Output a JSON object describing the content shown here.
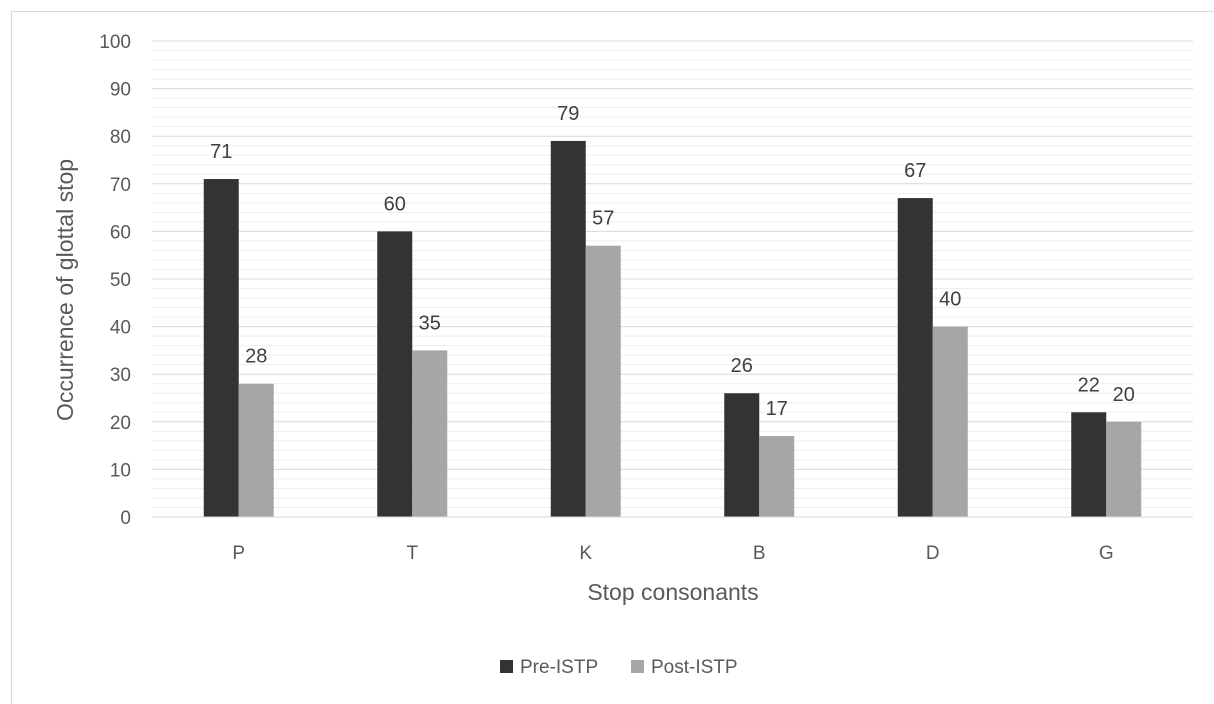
{
  "chart_data": {
    "type": "bar",
    "title": "",
    "xlabel": "Stop consonants",
    "ylabel": "Occurrence of glottal stop",
    "categories": [
      "P",
      "T",
      "K",
      "B",
      "D",
      "G"
    ],
    "series": [
      {
        "name": "Pre-ISTP",
        "values": [
          71,
          60,
          79,
          26,
          67,
          22
        ],
        "color": "#333333"
      },
      {
        "name": "Post-ISTP",
        "values": [
          28,
          35,
          57,
          17,
          40,
          20
        ],
        "color": "#a6a6a6"
      }
    ],
    "ylim": [
      0,
      100
    ],
    "yticks": [
      0,
      10,
      20,
      30,
      40,
      50,
      60,
      70,
      80,
      90,
      100
    ],
    "grid": true,
    "legend_position": "bottom",
    "data_labels": true
  }
}
